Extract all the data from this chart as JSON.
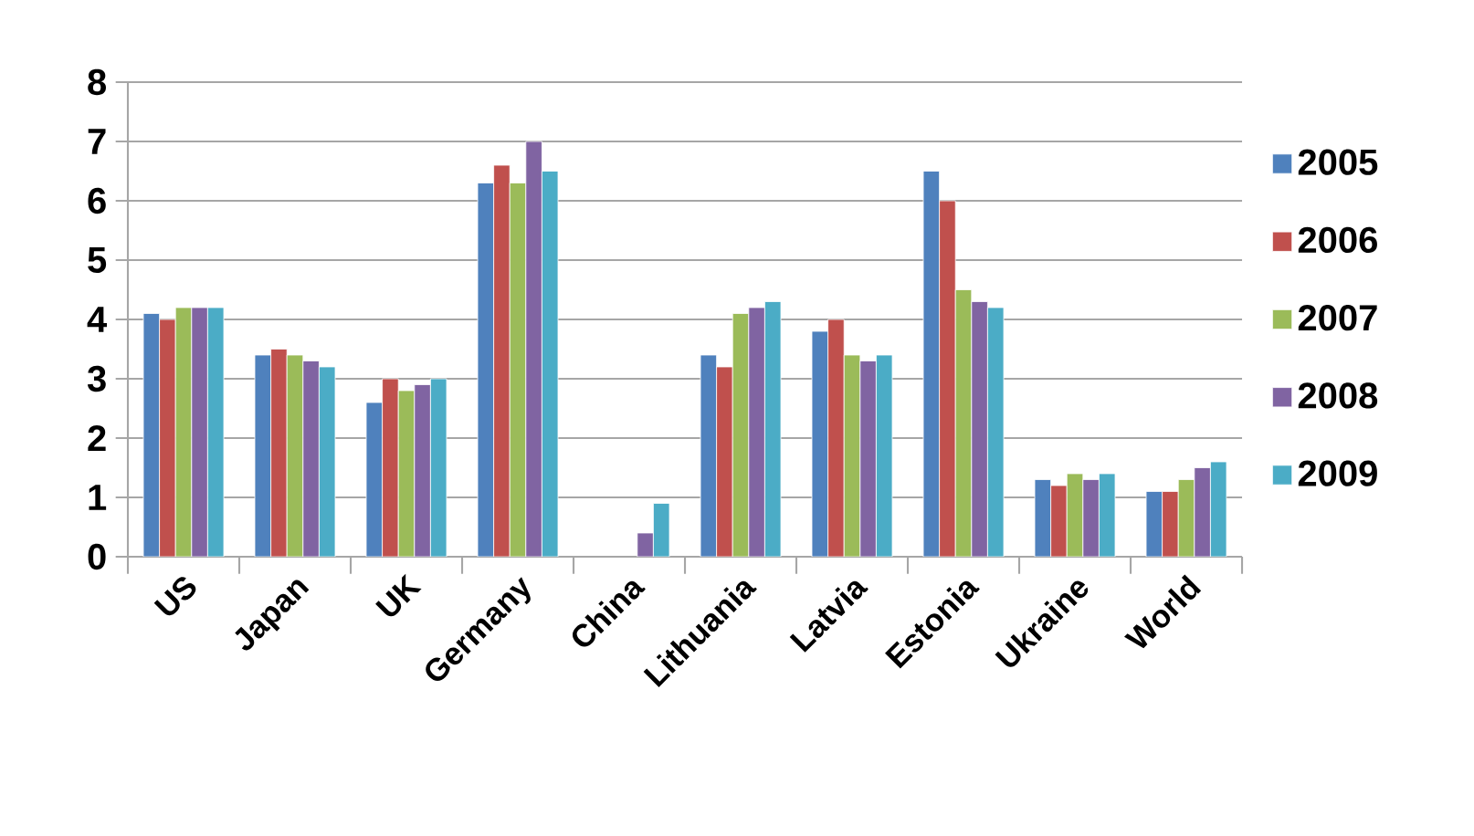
{
  "chart_data": {
    "type": "bar",
    "categories": [
      "US",
      "Japan",
      "UK",
      "Germany",
      "China",
      "Lithuania",
      "Latvia",
      "Estonia",
      "Ukraine",
      "World"
    ],
    "series": [
      {
        "name": "2005",
        "color": "#4f81bd",
        "values": [
          4.1,
          3.4,
          2.6,
          6.3,
          null,
          3.4,
          3.8,
          6.5,
          1.3,
          1.1
        ]
      },
      {
        "name": "2006",
        "color": "#c0504d",
        "values": [
          4.0,
          3.5,
          3.0,
          6.6,
          null,
          3.2,
          4.0,
          6.0,
          1.2,
          1.1
        ]
      },
      {
        "name": "2007",
        "color": "#9bbb59",
        "values": [
          4.2,
          3.4,
          2.8,
          6.3,
          null,
          4.1,
          3.4,
          4.5,
          1.4,
          1.3
        ]
      },
      {
        "name": "2008",
        "color": "#8064a2",
        "values": [
          4.2,
          3.3,
          2.9,
          7.0,
          0.4,
          4.2,
          3.3,
          4.3,
          1.3,
          1.5
        ]
      },
      {
        "name": "2009",
        "color": "#4bacc6",
        "values": [
          4.2,
          3.2,
          3.0,
          6.5,
          0.9,
          4.3,
          3.4,
          4.2,
          1.4,
          1.6
        ]
      }
    ],
    "ylim": [
      0,
      8
    ],
    "yticks": [
      0,
      1,
      2,
      3,
      4,
      5,
      6,
      7,
      8
    ],
    "grid": "y",
    "legend": "right"
  }
}
